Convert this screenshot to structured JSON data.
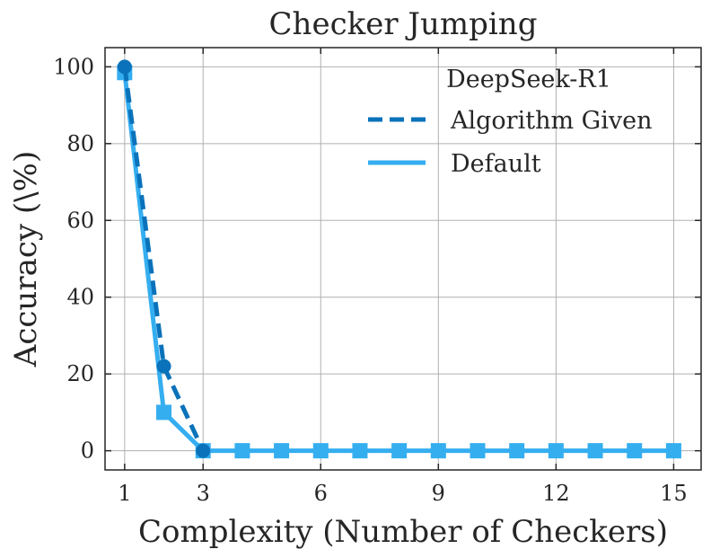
{
  "chart_data": {
    "type": "line",
    "title": "Checker Jumping",
    "xlabel": "Complexity (Number of Checkers)",
    "ylabel": "Accuracy (\\%)",
    "xlim": [
      0.5,
      15.7
    ],
    "ylim": [
      -5,
      105
    ],
    "xticks": [
      1,
      3,
      6,
      9,
      12,
      15
    ],
    "yticks": [
      0,
      20,
      40,
      60,
      80,
      100
    ],
    "grid": true,
    "legend": {
      "title": "DeepSeek-R1",
      "placement": "top-right"
    },
    "x": [
      1,
      2,
      3,
      4,
      5,
      6,
      7,
      8,
      9,
      10,
      11,
      12,
      13,
      14,
      15
    ],
    "series": [
      {
        "name": "Algorithm Given",
        "style": "dashed",
        "marker": "circle",
        "color": "#0a72ba",
        "x": [
          1,
          2,
          3
        ],
        "values": [
          100,
          22,
          0
        ]
      },
      {
        "name": "Default",
        "style": "solid",
        "marker": "square",
        "color": "#35aef0",
        "x": [
          1,
          2,
          3,
          4,
          5,
          6,
          7,
          8,
          9,
          10,
          11,
          12,
          13,
          14,
          15
        ],
        "values": [
          98.5,
          10,
          0,
          0,
          0,
          0,
          0,
          0,
          0,
          0,
          0,
          0,
          0,
          0,
          0
        ]
      }
    ]
  }
}
